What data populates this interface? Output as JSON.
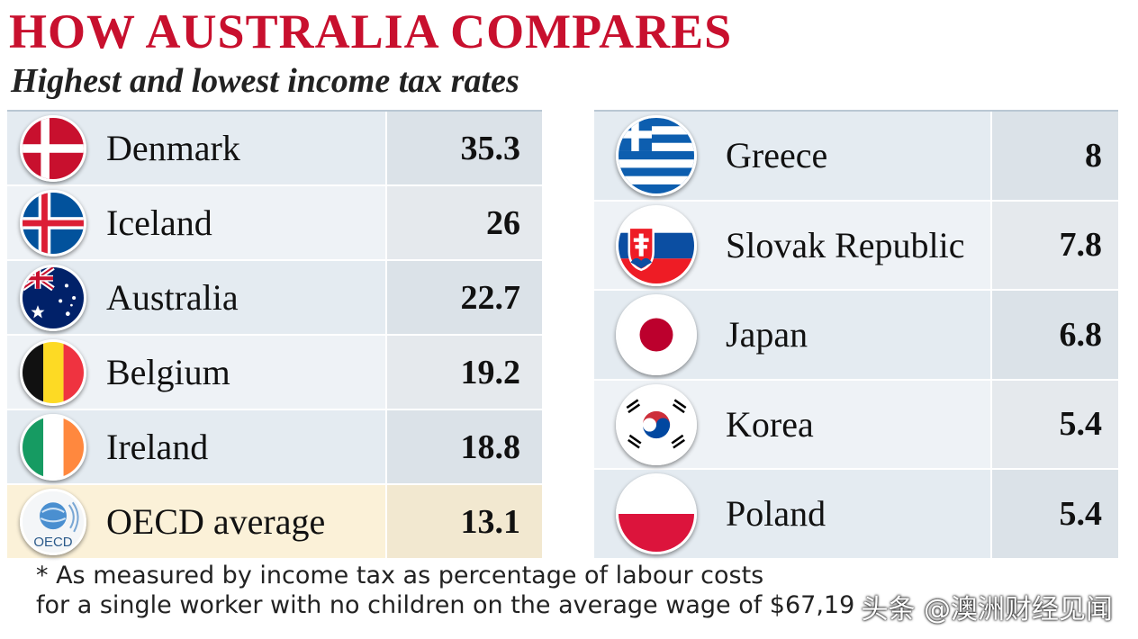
{
  "chart_data": {
    "type": "table",
    "title": "HOW AUSTRALIA COMPARES",
    "subtitle": "Highest and lowest income tax rates",
    "highest": [
      {
        "country": "Denmark",
        "value": 35.3,
        "label": "35.3",
        "flag": "denmark-flag-icon"
      },
      {
        "country": "Iceland",
        "value": 26,
        "label": "26",
        "flag": "iceland-flag-icon"
      },
      {
        "country": "Australia",
        "value": 22.7,
        "label": "22.7",
        "flag": "australia-flag-icon"
      },
      {
        "country": "Belgium",
        "value": 19.2,
        "label": "19.2",
        "flag": "belgium-flag-icon"
      },
      {
        "country": "Ireland",
        "value": 18.8,
        "label": "18.8",
        "flag": "ireland-flag-icon"
      },
      {
        "country": "OECD average",
        "value": 13.1,
        "label": "13.1",
        "flag": "oecd-logo-icon"
      }
    ],
    "lowest": [
      {
        "country": "Greece",
        "value": 8,
        "label": "8",
        "flag": "greece-flag-icon"
      },
      {
        "country": "Slovak Republic",
        "value": 7.8,
        "label": "7.8",
        "flag": "slovakia-flag-icon"
      },
      {
        "country": "Japan",
        "value": 6.8,
        "label": "6.8",
        "flag": "japan-flag-icon"
      },
      {
        "country": "Korea",
        "value": 5.4,
        "label": "5.4",
        "flag": "korea-flag-icon"
      },
      {
        "country": "Poland",
        "value": 5.4,
        "label": "5.4",
        "flag": "poland-flag-icon"
      }
    ],
    "oecd_logo_text": "OECD"
  },
  "footnote": {
    "line1": "* As measured by income tax as percentage of labour costs",
    "line2": "for a single worker with no children on the average wage of $67,19"
  },
  "watermark": "头条 @澳洲财经见闻",
  "colors": {
    "title": "#c8102e",
    "row_a": "#e4ebf1",
    "row_b": "#eef2f6",
    "average_row": "#fbf1d8"
  }
}
